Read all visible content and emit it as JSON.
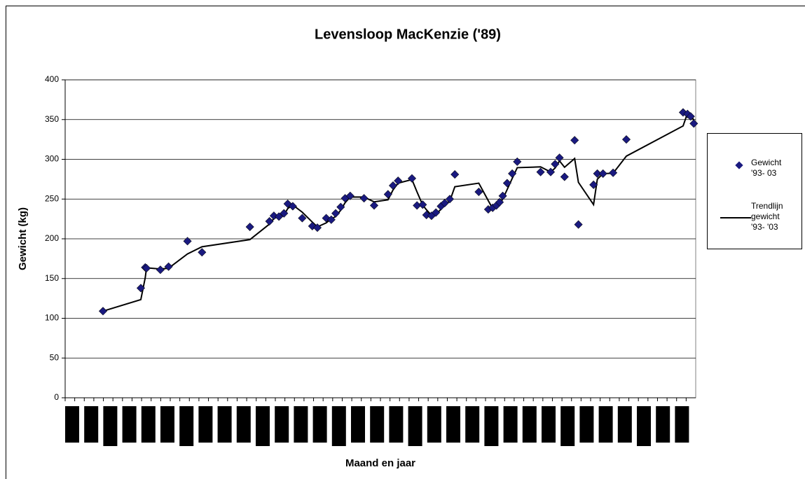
{
  "chart_data": {
    "type": "scatter",
    "title": "Levensloop MacKenzie ('89)",
    "x_label": "Maand en jaar",
    "y_label": "Gewicht (kg)",
    "xlim": [
      0,
      100
    ],
    "ylim": [
      0,
      400
    ],
    "yticks": [
      0,
      50,
      100,
      150,
      200,
      250,
      300,
      350,
      400
    ],
    "grid": true,
    "legend": "right",
    "x": [
      6.0,
      12.0,
      12.7,
      12.9,
      15.1,
      16.4,
      19.4,
      21.7,
      29.3,
      32.4,
      33.1,
      33.9,
      34.7,
      35.3,
      36.1,
      37.6,
      39.2,
      40.0,
      41.4,
      42.2,
      42.9,
      43.7,
      44.4,
      45.2,
      47.4,
      49.0,
      51.2,
      52.0,
      52.8,
      55.0,
      55.8,
      56.7,
      57.3,
      58.1,
      58.8,
      59.6,
      60.2,
      61.0,
      61.8,
      65.6,
      67.1,
      67.8,
      68.4,
      68.9,
      69.4,
      70.1,
      70.9,
      71.7,
      75.4,
      77.0,
      77.7,
      78.4,
      79.2,
      80.8,
      81.4,
      83.8,
      84.4,
      85.3,
      86.9,
      89.0,
      98.0,
      98.7,
      99.2,
      99.7
    ],
    "series": [
      {
        "name": "Gewicht '93- 03",
        "color": "#1a1a80",
        "kind": "markers",
        "values": [
          109,
          138,
          164,
          163,
          161,
          165,
          197,
          183,
          215,
          222,
          229,
          228,
          232,
          244,
          241,
          226,
          216,
          214,
          226,
          224,
          232,
          240,
          251,
          254,
          251,
          242,
          256,
          267,
          273,
          276,
          242,
          243,
          230,
          229,
          233,
          241,
          245,
          250,
          281,
          259,
          237,
          239,
          242,
          246,
          254,
          270,
          282,
          297,
          284,
          284,
          294,
          302,
          278,
          324,
          218,
          268,
          282,
          282,
          283,
          325,
          359,
          357,
          354,
          345
        ]
      },
      {
        "name": "Trendlijn gewicht '93- '03",
        "color": "#000000",
        "kind": "line",
        "values": [
          109,
          123.5,
          151,
          163.5,
          162,
          163,
          181,
          190,
          199,
          218.5,
          225.5,
          228.5,
          230,
          238,
          242.5,
          233.5,
          221,
          215,
          220,
          225,
          228,
          236,
          245.5,
          252.5,
          252.5,
          246.5,
          249,
          261.5,
          270,
          274.5,
          259,
          242.5,
          236.5,
          229.5,
          231,
          237,
          243,
          247.5,
          265.5,
          270,
          248,
          238,
          240.5,
          244,
          250,
          262,
          276,
          289.5,
          290.5,
          284,
          289,
          298,
          290,
          301,
          271,
          243,
          275,
          282,
          282.5,
          304,
          342,
          358,
          355.5,
          349.5
        ]
      }
    ]
  }
}
